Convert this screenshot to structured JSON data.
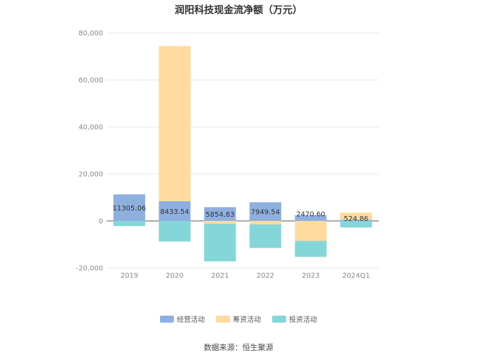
{
  "chart_data": {
    "type": "bar",
    "stacked": true,
    "title": "润阳科技现金流净额（万元）",
    "categories": [
      "2019",
      "2020",
      "2021",
      "2022",
      "2023",
      "2024Q1"
    ],
    "series": [
      {
        "name": "经营活动",
        "color": "#8EB0DF",
        "values": [
          11305.06,
          8433.54,
          5854.83,
          7949.54,
          2470.6,
          524.86
        ]
      },
      {
        "name": "筹资活动",
        "color": "#FFDBA0",
        "values": [
          0,
          66000,
          -1200,
          -1500,
          -8500,
          3000
        ]
      },
      {
        "name": "投资活动",
        "color": "#85D6D9",
        "values": [
          -2200,
          -8800,
          -16000,
          -10000,
          -6800,
          -2800
        ]
      }
    ],
    "data_labels": [
      "11305.06",
      "8433.54",
      "5854.83",
      "7949.54",
      "2470.60",
      "524.86"
    ],
    "y_ticks": [
      "80,000",
      "60,000",
      "40,000",
      "20,000",
      "0",
      "-20,000"
    ],
    "ylim": [
      -20000,
      80000
    ],
    "grid": true,
    "legend_position": "bottom"
  },
  "source_text": "数据来源：恒生聚源"
}
